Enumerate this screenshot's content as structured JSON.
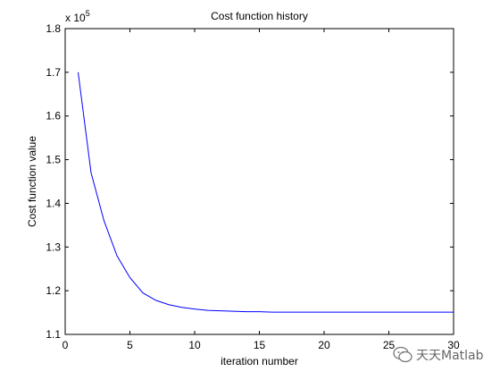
{
  "chart_data": {
    "type": "line",
    "title": "Cost function history",
    "xlabel": "iteration number",
    "ylabel": "Cost function value",
    "xlim": [
      0,
      30
    ],
    "ylim": [
      1.1,
      1.8
    ],
    "y_exponent_label": "x 10",
    "y_exponent_power": "5",
    "y_scale_factor": 100000,
    "grid": false,
    "legend": "none",
    "line_color": "#0000ff",
    "x_ticks": [
      0,
      5,
      10,
      15,
      20,
      25,
      30
    ],
    "x_tick_labels": [
      "0",
      "5",
      "10",
      "15",
      "20",
      "25",
      "30"
    ],
    "y_ticks": [
      1.1,
      1.2,
      1.3,
      1.4,
      1.5,
      1.6,
      1.7,
      1.8
    ],
    "y_tick_labels": [
      "1.1",
      "1.2",
      "1.3",
      "1.4",
      "1.5",
      "1.6",
      "1.7",
      "1.8"
    ],
    "series": [
      {
        "x": [
          1,
          2,
          3,
          4,
          5,
          6,
          7,
          8,
          9,
          10,
          11,
          12,
          13,
          14,
          15,
          16,
          17,
          18,
          19,
          20,
          21,
          22,
          23,
          24,
          25,
          26,
          27,
          28,
          29,
          30
        ],
        "y": [
          1.7,
          1.47,
          1.36,
          1.28,
          1.23,
          1.195,
          1.178,
          1.168,
          1.162,
          1.158,
          1.155,
          1.154,
          1.153,
          1.152,
          1.152,
          1.151,
          1.151,
          1.151,
          1.151,
          1.151,
          1.151,
          1.151,
          1.151,
          1.151,
          1.151,
          1.151,
          1.151,
          1.151,
          1.151,
          1.151
        ]
      }
    ]
  },
  "watermark": {
    "text": "天天Matlab",
    "icon": "wechat-icon"
  }
}
